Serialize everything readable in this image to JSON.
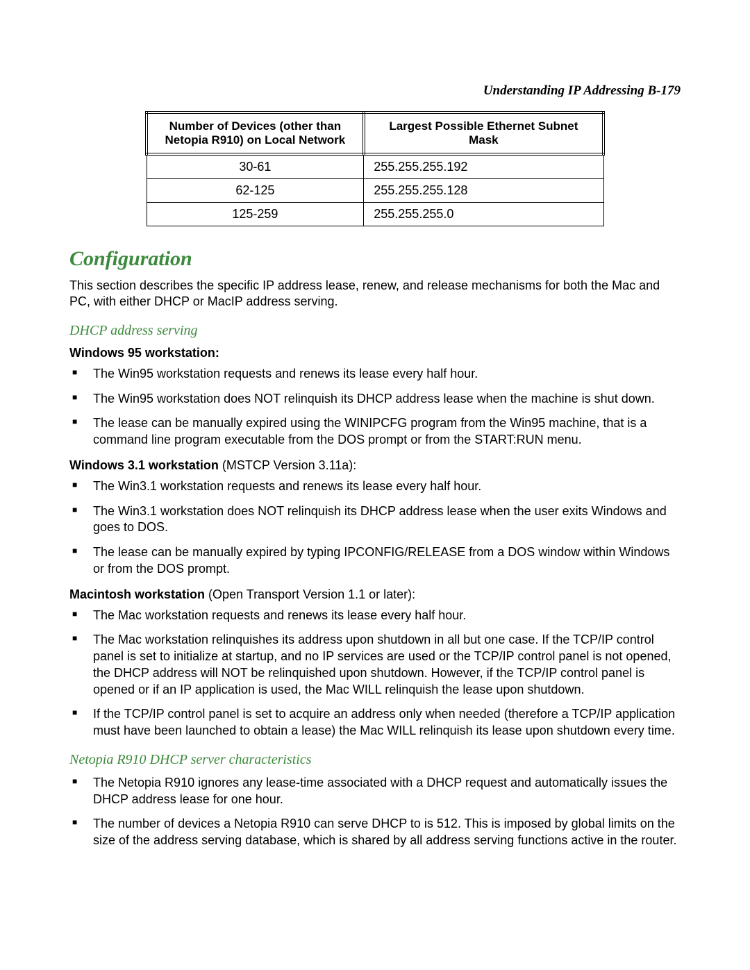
{
  "colors": {
    "text": "#000000",
    "heading_green": "#3c8a3c",
    "background": "#ffffff",
    "table_border": "#000000"
  },
  "running_head": "Understanding IP Addressing  B-179",
  "subnet_table": {
    "headers": {
      "devices": "Number of Devices (other than Netopia R910) on Local Network",
      "mask": "Largest Possible Ethernet Subnet Mask"
    },
    "rows": [
      {
        "devices": "30-61",
        "mask": "255.255.255.192"
      },
      {
        "devices": "62-125",
        "mask": "255.255.255.128"
      },
      {
        "devices": "125-259",
        "mask": "255.255.255.0"
      }
    ]
  },
  "h1_configuration": "Configuration",
  "configuration_intro": "This section describes the specific IP address lease, renew, and release mechanisms for both the Mac and PC, with either DHCP or MacIP address serving.",
  "h2_dhcp": "DHCP address serving",
  "win95": {
    "label_bold": "Windows 95 workstation:",
    "items": [
      "The Win95 workstation requests and renews its lease every half hour.",
      "The Win95 workstation does NOT relinquish its DHCP address lease when the machine is shut down.",
      "The lease can be manually expired using the WINIPCFG program from the Win95 machine, that is a command line program executable from the DOS prompt or from the START:RUN menu."
    ]
  },
  "win31": {
    "label_bold": "Windows 3.1 workstation",
    "label_rest": " (MSTCP Version 3.11a):",
    "items": [
      "The Win3.1 workstation requests and renews its lease every half hour.",
      "The Win3.1 workstation does NOT relinquish its DHCP address lease when the user exits Windows and goes to DOS.",
      "The lease can be manually expired by typing IPCONFIG/RELEASE from a DOS window within Windows or from the DOS prompt."
    ]
  },
  "mac": {
    "label_bold": "Macintosh workstation",
    "label_rest": " (Open Transport Version 1.1 or later):",
    "items": [
      "The Mac workstation requests and renews its lease every half hour.",
      "The Mac workstation relinquishes its address upon shutdown in all but one case. If the TCP/IP control panel is set to initialize at startup, and no IP services are used or the TCP/IP control panel is not opened, the DHCP address will NOT be relinquished upon shutdown. However, if the TCP/IP control panel is opened or if an IP application is used, the Mac WILL relinquish the lease upon shutdown.",
      "If the TCP/IP control panel is set to acquire an address only when needed (therefore a TCP/IP application must have been launched to obtain a lease) the Mac WILL relinquish its lease upon shutdown every time."
    ]
  },
  "h2_r910": "Netopia R910 DHCP server characteristics",
  "r910_items": [
    "The Netopia R910 ignores any lease-time associated with a DHCP request and automatically issues the DHCP address lease for one hour.",
    "The number of devices a Netopia R910 can serve DHCP to is 512. This is imposed by global limits on the size of the address serving database, which is shared by all address serving functions active in the router."
  ]
}
